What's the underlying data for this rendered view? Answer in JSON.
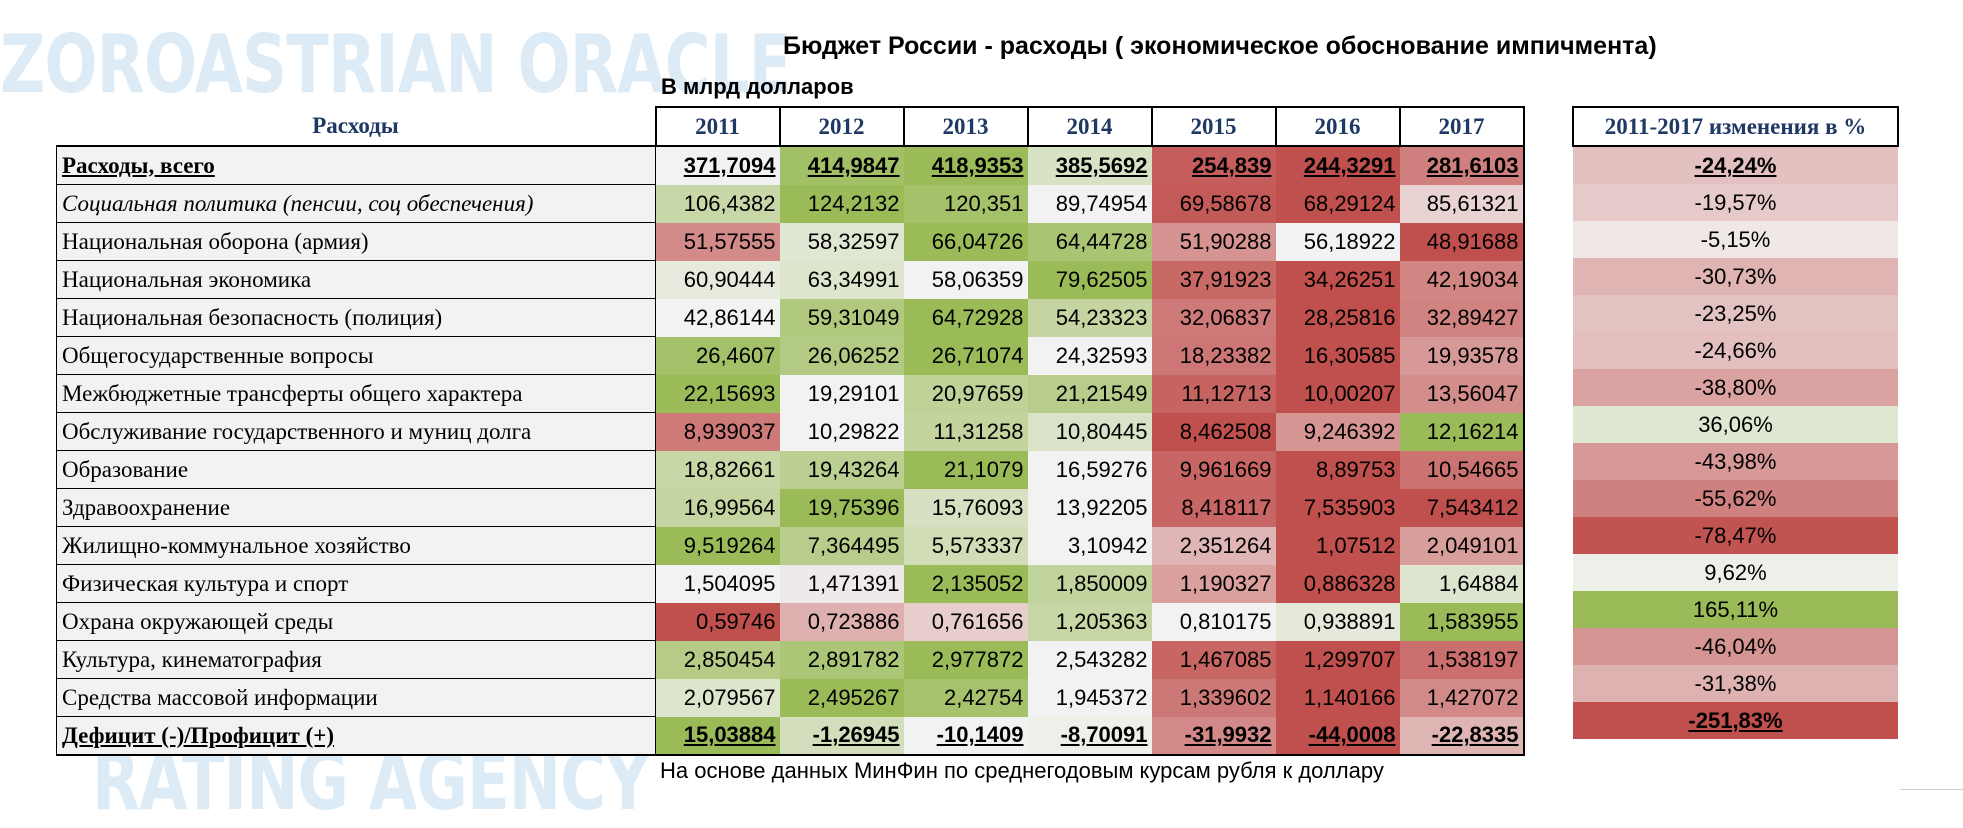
{
  "watermark": {
    "top": "ZOROASTRIAN ORACLE",
    "bottom": "RATING AGENCY"
  },
  "title": "Бюджет России - расходы ( экономическое обоснование импичмента)",
  "subtitle": "В млрд долларов",
  "footnote": "На основе данных МинФин по среднегодовым курсам рубля к доллару",
  "colors": {
    "header_text": "#1f3864",
    "label_bg": "#f2f2f2",
    "scale_low": "#c0504d",
    "scale_mid": "#f2f2f2",
    "scale_high": "#9bbb59"
  },
  "chart_data": {
    "type": "table",
    "title": "Бюджет России - расходы ( экономическое обоснование импичмента)",
    "row_header": "Расходы",
    "columns": [
      "2011",
      "2012",
      "2013",
      "2014",
      "2015",
      "2016",
      "2017"
    ],
    "change_header": "2011-2017 изменения в %",
    "rows": [
      {
        "label": "Расходы, всего",
        "style": "bold",
        "values": [
          "371,7094",
          "414,9847",
          "418,9353",
          "385,5692",
          "254,839",
          "244,3291",
          "281,6103"
        ],
        "change": "-24,24%"
      },
      {
        "label": "Социальная политика (пенсии, соц обеспечения)",
        "style": "italic",
        "values": [
          "106,4382",
          "124,2132",
          "120,351",
          "89,74954",
          "69,58678",
          "68,29124",
          "85,61321"
        ],
        "change": "-19,57%"
      },
      {
        "label": "Национальная оборона (армия)",
        "style": "normal",
        "values": [
          "51,57555",
          "58,32597",
          "66,04726",
          "64,44728",
          "51,90288",
          "56,18922",
          "48,91688"
        ],
        "change": "-5,15%"
      },
      {
        "label": "Национальная экономика",
        "style": "normal",
        "values": [
          "60,90444",
          "63,34991",
          "58,06359",
          "79,62505",
          "37,91923",
          "34,26251",
          "42,19034"
        ],
        "change": "-30,73%"
      },
      {
        "label": "Национальная безопасность (полиция)",
        "style": "normal",
        "values": [
          "42,86144",
          "59,31049",
          "64,72928",
          "54,23323",
          "32,06837",
          "28,25816",
          "32,89427"
        ],
        "change": "-23,25%"
      },
      {
        "label": "Общегосударственные вопросы",
        "style": "normal",
        "values": [
          "26,4607",
          "26,06252",
          "26,71074",
          "24,32593",
          "18,23382",
          "16,30585",
          "19,93578"
        ],
        "change": "-24,66%"
      },
      {
        "label": "Межбюджетные трансферты общего характера",
        "style": "normal",
        "values": [
          "22,15693",
          "19,29101",
          "20,97659",
          "21,21549",
          "11,12713",
          "10,00207",
          "13,56047"
        ],
        "change": "-38,80%"
      },
      {
        "label": "Обслуживание государственного и муниц долга",
        "style": "normal",
        "values": [
          "8,939037",
          "10,29822",
          "11,31258",
          "10,80445",
          "8,462508",
          "9,246392",
          "12,16214"
        ],
        "change": "36,06%"
      },
      {
        "label": "Образование",
        "style": "normal",
        "values": [
          "18,82661",
          "19,43264",
          "21,1079",
          "16,59276",
          "9,961669",
          "8,89753",
          "10,54665"
        ],
        "change": "-43,98%"
      },
      {
        "label": "Здравоохранение",
        "style": "normal",
        "values": [
          "16,99564",
          "19,75396",
          "15,76093",
          "13,92205",
          "8,418117",
          "7,535903",
          "7,543412"
        ],
        "change": "-55,62%"
      },
      {
        "label": "Жилищно-коммунальное хозяйство",
        "style": "normal",
        "values": [
          "9,519264",
          "7,364495",
          "5,573337",
          "3,10942",
          "2,351264",
          "1,07512",
          "2,049101"
        ],
        "change": "-78,47%"
      },
      {
        "label": "Физическая культура и спорт",
        "style": "normal",
        "values": [
          "1,504095",
          "1,471391",
          "2,135052",
          "1,850009",
          "1,190327",
          "0,886328",
          "1,64884"
        ],
        "change": "9,62%"
      },
      {
        "label": "Охрана окружающей среды",
        "style": "normal",
        "values": [
          "0,59746",
          "0,723886",
          "0,761656",
          "1,205363",
          "0,810175",
          "0,938891",
          "1,583955"
        ],
        "change": "165,11%"
      },
      {
        "label": "Культура, кинематография",
        "style": "normal",
        "values": [
          "2,850454",
          "2,891782",
          "2,977872",
          "2,543282",
          "1,467085",
          "1,299707",
          "1,538197"
        ],
        "change": "-46,04%"
      },
      {
        "label": "Средства массовой информации",
        "style": "normal",
        "values": [
          "2,079567",
          "2,495267",
          "2,42754",
          "1,945372",
          "1,339602",
          "1,140166",
          "1,427072"
        ],
        "change": "-31,38%"
      },
      {
        "label": "Дефицит (-)/Профицит (+)",
        "style": "bold",
        "values": [
          "15,03884",
          "-1,26945",
          "-10,1409",
          "-8,70091",
          "-31,9932",
          "-44,0008",
          "-22,8335"
        ],
        "change": "-251,83%"
      }
    ]
  }
}
